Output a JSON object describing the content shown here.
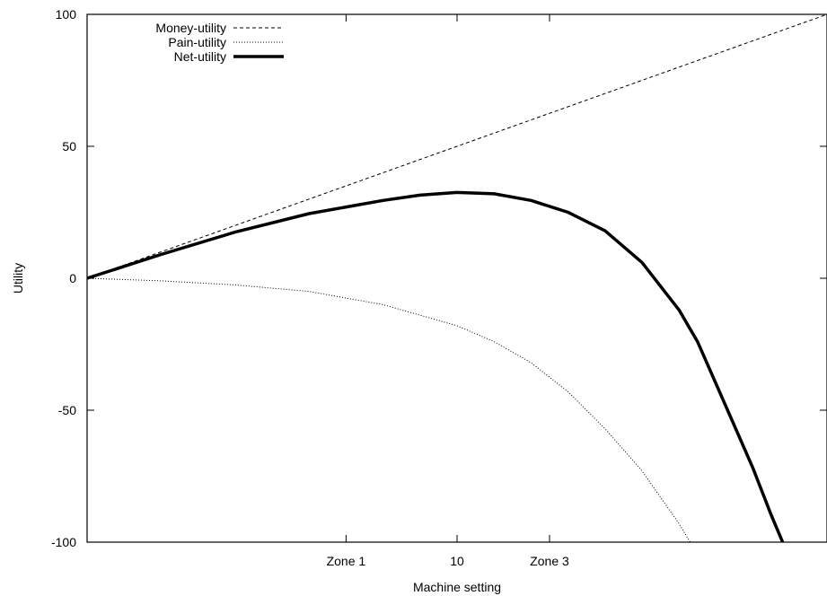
{
  "chart_data": {
    "type": "line",
    "title": "",
    "xlabel": "Machine setting",
    "ylabel": "Utility",
    "xlim": [
      0,
      20
    ],
    "ylim": [
      -100,
      100
    ],
    "grid": false,
    "legend_position": "top-left",
    "x_ticks": [
      {
        "x": 7,
        "label": "Zone 1"
      },
      {
        "x": 10,
        "label": "10"
      },
      {
        "x": 12.5,
        "label": "Zone 3"
      }
    ],
    "y_ticks": [
      {
        "y": 100,
        "label": "100"
      },
      {
        "y": 50,
        "label": "50"
      },
      {
        "y": 0,
        "label": "0"
      },
      {
        "y": -50,
        "label": "-50"
      },
      {
        "y": -100,
        "label": "-100"
      }
    ],
    "series": [
      {
        "name": "Money-utility",
        "style": "dashed",
        "color": "#000000",
        "x": [
          0,
          2,
          4,
          6,
          8,
          10,
          12,
          14,
          16,
          18,
          20
        ],
        "y": [
          0,
          10,
          20,
          30,
          40,
          50,
          60,
          70,
          80,
          90,
          100
        ]
      },
      {
        "name": "Pain-utility",
        "style": "dotted",
        "color": "#000000",
        "x": [
          0,
          2,
          4,
          6,
          8,
          10,
          11,
          12,
          13,
          14,
          15,
          16,
          16.3
        ],
        "y": [
          0,
          -1,
          -2.5,
          -5,
          -10,
          -18,
          -24,
          -32,
          -43,
          -57,
          -73,
          -93,
          -100
        ]
      },
      {
        "name": "Net-utility",
        "style": "solid-thick",
        "color": "#000000",
        "x": [
          0,
          2,
          4,
          6,
          8,
          9,
          10,
          11,
          12,
          13,
          14,
          15,
          16,
          16.5,
          17,
          17.5,
          18,
          18.5,
          18.8
        ],
        "y": [
          0,
          9,
          17.5,
          24.5,
          29.5,
          31.5,
          32.5,
          32,
          29.5,
          25,
          18,
          6,
          -12,
          -24,
          -40,
          -56,
          -72,
          -90,
          -100
        ]
      }
    ]
  }
}
